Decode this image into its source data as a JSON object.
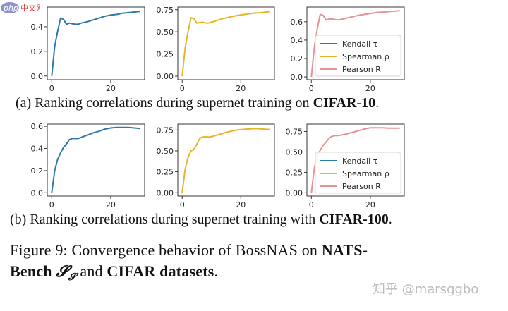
{
  "colors": {
    "kendall": "#2e7aa5",
    "spearman": "#e6b625",
    "pearson": "#e89295"
  },
  "logo": {
    "text_php": "php",
    "text_cn": "中文网"
  },
  "captions": {
    "a_prefix": "(a) Ranking correlations during supernet training on ",
    "a_bold": "CIFAR-10",
    "a_suffix": ".",
    "b_prefix": "(b) Ranking correlations during supernet training with ",
    "b_bold": "CIFAR-100",
    "b_suffix": "."
  },
  "figure_caption": {
    "line1_prefix": "Figure 9:  Convergence behavior of BossNAS on ",
    "line1_bold": "NATS-",
    "line2_bold_a": "Bench ",
    "line2_math": "𝓢",
    "line2_math_sub": "𝓢",
    "line2_mid": " and ",
    "line2_bold_b": "CIFAR datasets",
    "line2_suffix": "."
  },
  "watermark": "知乎 @marsggbo",
  "chart_data": [
    {
      "type": "line",
      "row": "a",
      "col": 0,
      "color_key": "kendall",
      "xlim": [
        -1.5,
        31.5
      ],
      "ylim": [
        -0.03,
        0.56
      ],
      "xticks": [
        0,
        20
      ],
      "xtick_labels": [
        "0",
        "20"
      ],
      "yticks": [
        0.0,
        0.2,
        0.4
      ],
      "ytick_labels": [
        "0.0",
        "0.2",
        "0.4"
      ],
      "x": [
        0,
        1,
        2,
        3,
        4,
        5,
        6,
        7,
        8,
        9,
        10,
        12,
        14,
        16,
        18,
        20,
        22,
        24,
        26,
        28,
        30
      ],
      "y": [
        0.0,
        0.24,
        0.36,
        0.47,
        0.46,
        0.42,
        0.43,
        0.425,
        0.42,
        0.42,
        0.43,
        0.44,
        0.455,
        0.47,
        0.485,
        0.495,
        0.5,
        0.51,
        0.515,
        0.52,
        0.525
      ]
    },
    {
      "type": "line",
      "row": "a",
      "col": 1,
      "color_key": "spearman",
      "xlim": [
        -1.5,
        31.5
      ],
      "ylim": [
        -0.04,
        0.78
      ],
      "xticks": [
        0,
        20
      ],
      "xtick_labels": [
        "0",
        "20"
      ],
      "yticks": [
        0.0,
        0.25,
        0.5,
        0.75
      ],
      "ytick_labels": [
        "0.00",
        "0.25",
        "0.50",
        "0.75"
      ],
      "x": [
        0,
        1,
        2,
        3,
        4,
        5,
        6,
        7,
        8,
        9,
        10,
        12,
        14,
        16,
        18,
        20,
        22,
        24,
        26,
        28,
        30
      ],
      "y": [
        0.0,
        0.32,
        0.5,
        0.66,
        0.65,
        0.6,
        0.605,
        0.61,
        0.6,
        0.6,
        0.61,
        0.63,
        0.65,
        0.665,
        0.68,
        0.69,
        0.7,
        0.71,
        0.715,
        0.72,
        0.73
      ]
    },
    {
      "type": "line",
      "row": "a",
      "col": 2,
      "color_key": "pearson",
      "xlim": [
        -1.5,
        31.5
      ],
      "ylim": [
        -0.03,
        0.76
      ],
      "xticks": [
        0,
        20
      ],
      "xtick_labels": [
        "0",
        "20"
      ],
      "yticks": [
        0.0,
        0.2,
        0.4,
        0.6
      ],
      "ytick_labels": [
        "0.0",
        "0.2",
        "0.4",
        "0.6"
      ],
      "x": [
        0,
        1,
        2,
        3,
        4,
        5,
        6,
        7,
        8,
        9,
        10,
        12,
        14,
        16,
        18,
        20,
        22,
        24,
        26,
        28,
        30
      ],
      "y": [
        0.0,
        0.32,
        0.52,
        0.68,
        0.67,
        0.62,
        0.63,
        0.63,
        0.625,
        0.62,
        0.625,
        0.64,
        0.655,
        0.67,
        0.68,
        0.69,
        0.7,
        0.705,
        0.71,
        0.715,
        0.72
      ],
      "legend": {
        "placement": "center-right",
        "entries": [
          {
            "label": "Kendall τ",
            "color_key": "kendall"
          },
          {
            "label": "Spearman ρ",
            "color_key": "spearman"
          },
          {
            "label": "Pearson R",
            "color_key": "pearson"
          }
        ]
      }
    },
    {
      "type": "line",
      "row": "b",
      "col": 0,
      "color_key": "kendall",
      "xlim": [
        -1.5,
        31.5
      ],
      "ylim": [
        -0.03,
        0.62
      ],
      "xticks": [
        0,
        20
      ],
      "xtick_labels": [
        "0",
        "20"
      ],
      "yticks": [
        0.0,
        0.2,
        0.4,
        0.6
      ],
      "ytick_labels": [
        "0.0",
        "0.2",
        "0.4",
        "0.6"
      ],
      "x": [
        0,
        1,
        2,
        3,
        4,
        5,
        6,
        7,
        8,
        9,
        10,
        12,
        14,
        16,
        18,
        20,
        22,
        24,
        26,
        28,
        30
      ],
      "y": [
        0.0,
        0.2,
        0.3,
        0.36,
        0.41,
        0.44,
        0.48,
        0.49,
        0.49,
        0.49,
        0.5,
        0.52,
        0.54,
        0.555,
        0.575,
        0.585,
        0.59,
        0.59,
        0.59,
        0.585,
        0.58
      ]
    },
    {
      "type": "line",
      "row": "b",
      "col": 1,
      "color_key": "spearman",
      "xlim": [
        -1.5,
        31.5
      ],
      "ylim": [
        -0.04,
        0.82
      ],
      "xticks": [
        0,
        20
      ],
      "xtick_labels": [
        "0",
        "20"
      ],
      "yticks": [
        0.0,
        0.25,
        0.5,
        0.75
      ],
      "ytick_labels": [
        "0.00",
        "0.25",
        "0.50",
        "0.75"
      ],
      "x": [
        0,
        1,
        2,
        3,
        4,
        5,
        6,
        7,
        8,
        9,
        10,
        12,
        14,
        16,
        18,
        20,
        22,
        24,
        26,
        28,
        30
      ],
      "y": [
        0.0,
        0.28,
        0.42,
        0.5,
        0.52,
        0.58,
        0.65,
        0.665,
        0.67,
        0.665,
        0.67,
        0.69,
        0.71,
        0.73,
        0.745,
        0.755,
        0.76,
        0.765,
        0.765,
        0.76,
        0.755
      ]
    },
    {
      "type": "line",
      "row": "b",
      "col": 2,
      "color_key": "pearson",
      "xlim": [
        -1.5,
        31.5
      ],
      "ylim": [
        -0.04,
        0.84
      ],
      "xticks": [
        0,
        20
      ],
      "xtick_labels": [
        "0",
        "20"
      ],
      "yticks": [
        0.0,
        0.25,
        0.5,
        0.75
      ],
      "ytick_labels": [
        "0.00",
        "0.25",
        "0.50",
        "0.75"
      ],
      "x": [
        0,
        1,
        2,
        3,
        4,
        5,
        6,
        7,
        8,
        9,
        10,
        12,
        14,
        16,
        18,
        20,
        22,
        24,
        26,
        28,
        30
      ],
      "y": [
        0.0,
        0.3,
        0.45,
        0.52,
        0.58,
        0.62,
        0.67,
        0.69,
        0.7,
        0.7,
        0.705,
        0.72,
        0.74,
        0.76,
        0.78,
        0.795,
        0.795,
        0.795,
        0.79,
        0.79,
        0.79
      ],
      "legend": {
        "placement": "center-right",
        "entries": [
          {
            "label": "Kendall τ",
            "color_key": "kendall"
          },
          {
            "label": "Spearman ρ",
            "color_key": "spearman"
          },
          {
            "label": "Pearson R",
            "color_key": "pearson"
          }
        ]
      }
    }
  ]
}
